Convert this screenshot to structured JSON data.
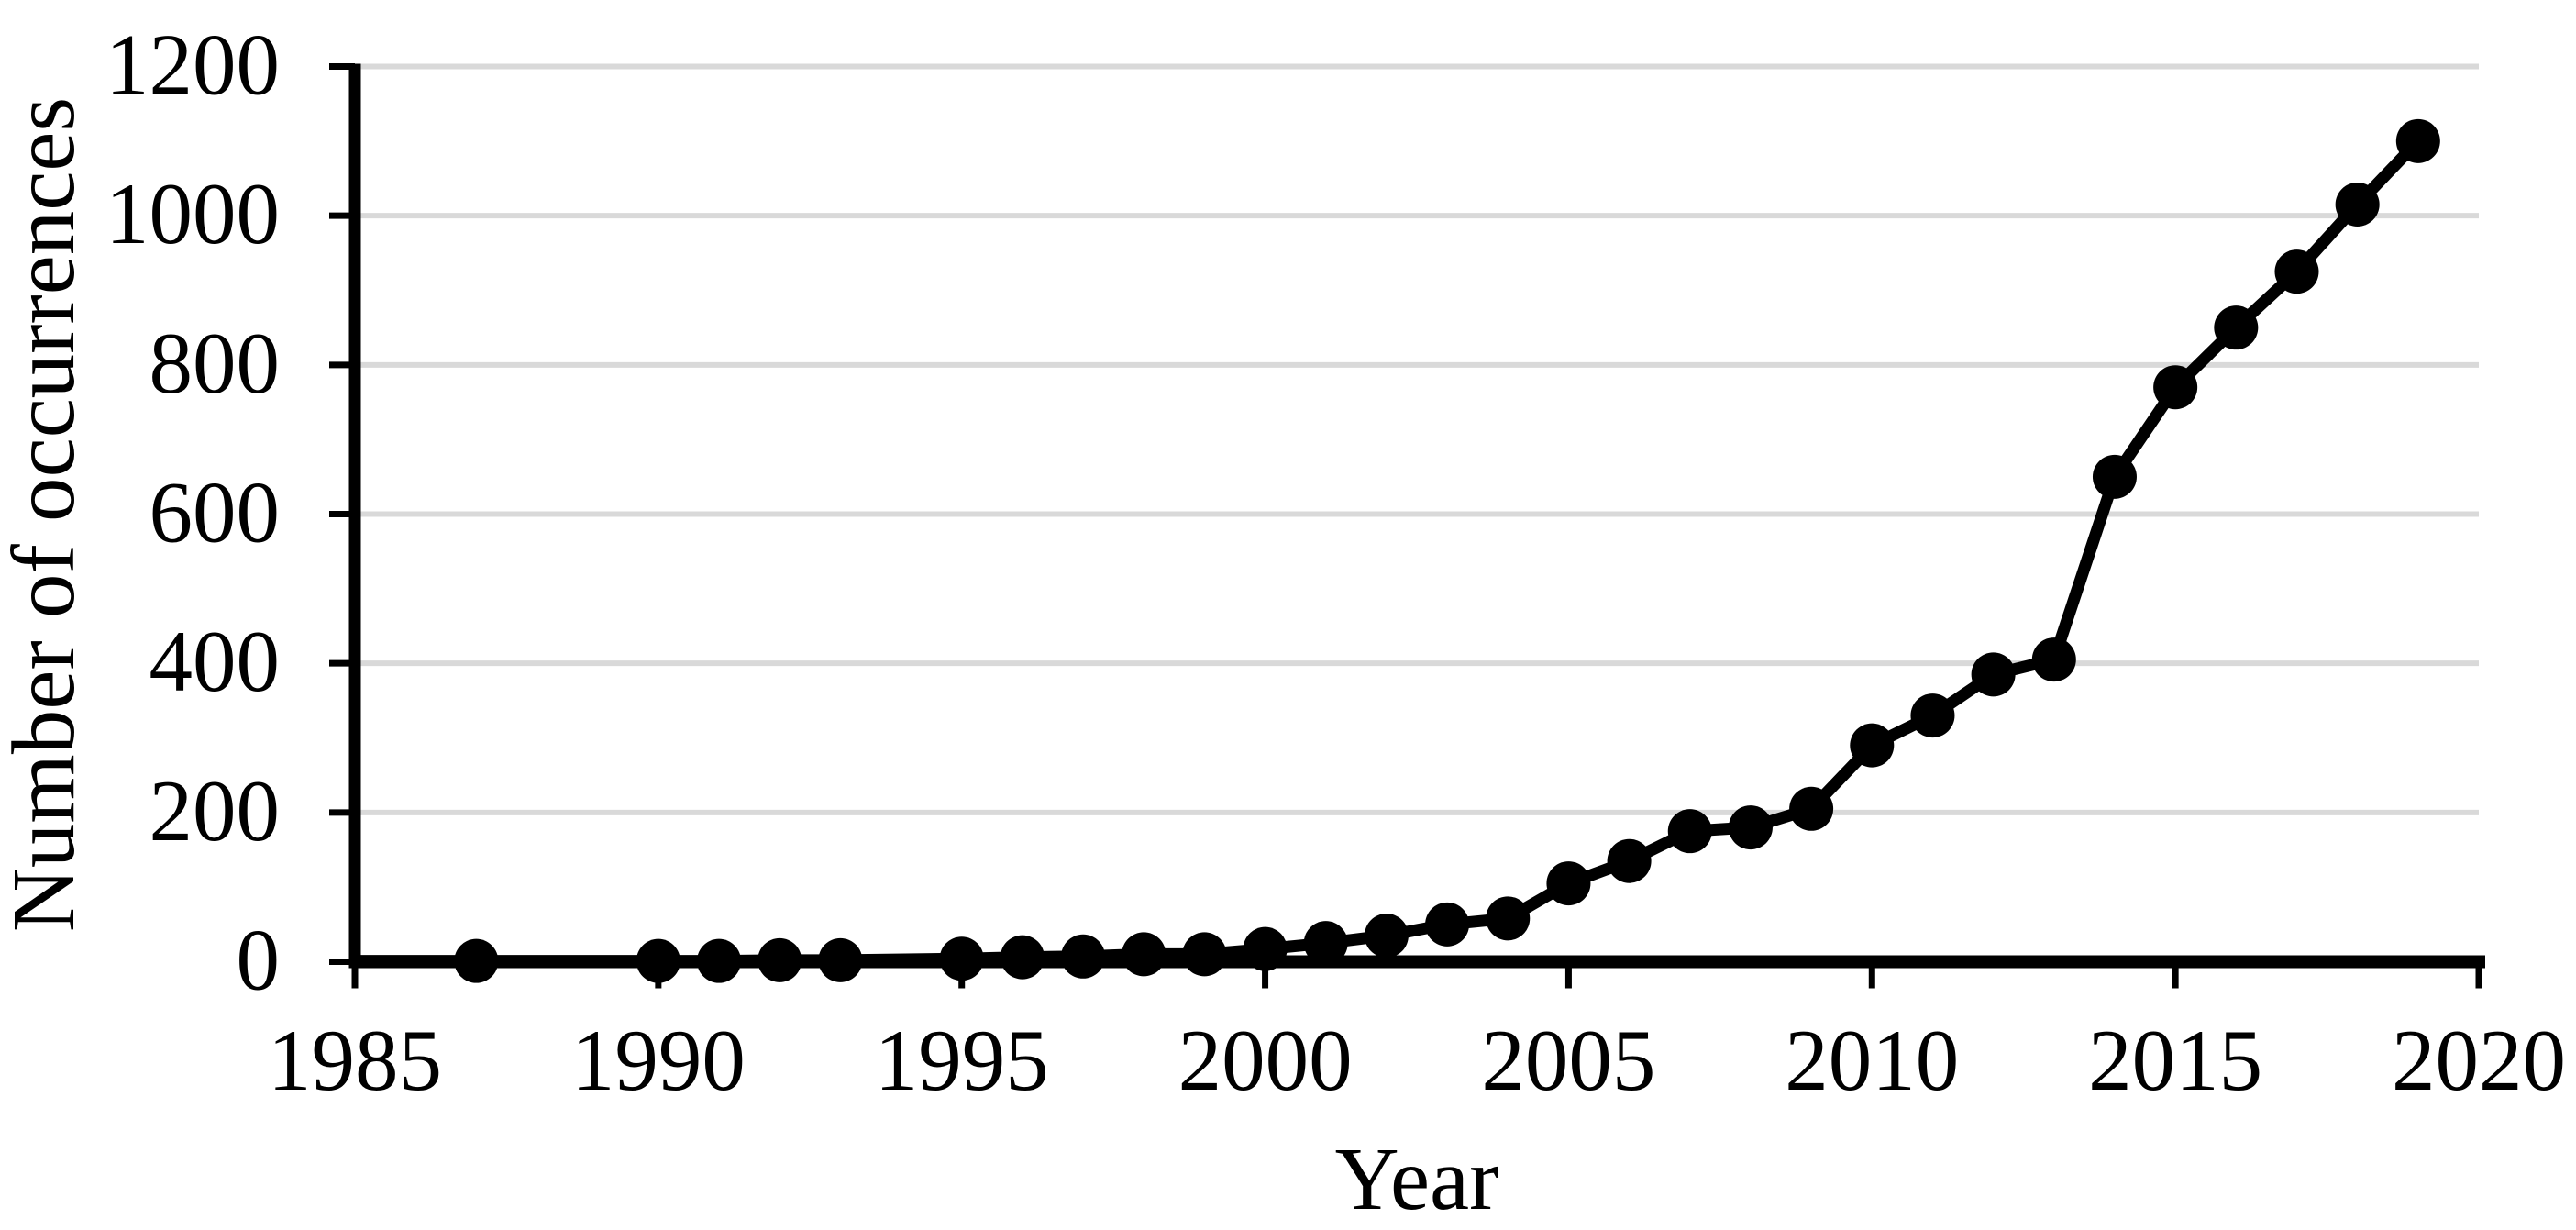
{
  "chart_data": {
    "type": "line",
    "title": "",
    "xlabel": "Year",
    "ylabel": "Number of occurrences",
    "xlim": [
      1985,
      2020
    ],
    "ylim": [
      0,
      1200
    ],
    "x_ticks": [
      1985,
      1990,
      1995,
      2000,
      2005,
      2010,
      2015,
      2020
    ],
    "y_ticks": [
      0,
      200,
      400,
      600,
      800,
      1000,
      1200
    ],
    "grid": "horizontal-only",
    "legend": "none",
    "gridline_color": "#d9d9d9",
    "axis_color": "#000000",
    "text_color": "#000000",
    "background_color": "#ffffff",
    "series": [
      {
        "name": "Number of occurrences",
        "line_color": "#000000",
        "marker": "circle",
        "marker_color": "#000000",
        "points": [
          {
            "x": 1985,
            "y": 1,
            "marker": false
          },
          {
            "x": 1987,
            "y": 1
          },
          {
            "x": 1990,
            "y": 1
          },
          {
            "x": 1991,
            "y": 1
          },
          {
            "x": 1992,
            "y": 2
          },
          {
            "x": 1993,
            "y": 2
          },
          {
            "x": 1995,
            "y": 4
          },
          {
            "x": 1996,
            "y": 6
          },
          {
            "x": 1997,
            "y": 7
          },
          {
            "x": 1998,
            "y": 10
          },
          {
            "x": 1999,
            "y": 10
          },
          {
            "x": 2000,
            "y": 17
          },
          {
            "x": 2001,
            "y": 25
          },
          {
            "x": 2002,
            "y": 35
          },
          {
            "x": 2003,
            "y": 50
          },
          {
            "x": 2004,
            "y": 58
          },
          {
            "x": 2005,
            "y": 105
          },
          {
            "x": 2006,
            "y": 135
          },
          {
            "x": 2007,
            "y": 175
          },
          {
            "x": 2008,
            "y": 180
          },
          {
            "x": 2009,
            "y": 205
          },
          {
            "x": 2010,
            "y": 290
          },
          {
            "x": 2011,
            "y": 330
          },
          {
            "x": 2012,
            "y": 385
          },
          {
            "x": 2013,
            "y": 405
          },
          {
            "x": 2014,
            "y": 650
          },
          {
            "x": 2015,
            "y": 770
          },
          {
            "x": 2016,
            "y": 850
          },
          {
            "x": 2017,
            "y": 925
          },
          {
            "x": 2018,
            "y": 1015
          },
          {
            "x": 2019,
            "y": 1100
          }
        ]
      }
    ]
  }
}
